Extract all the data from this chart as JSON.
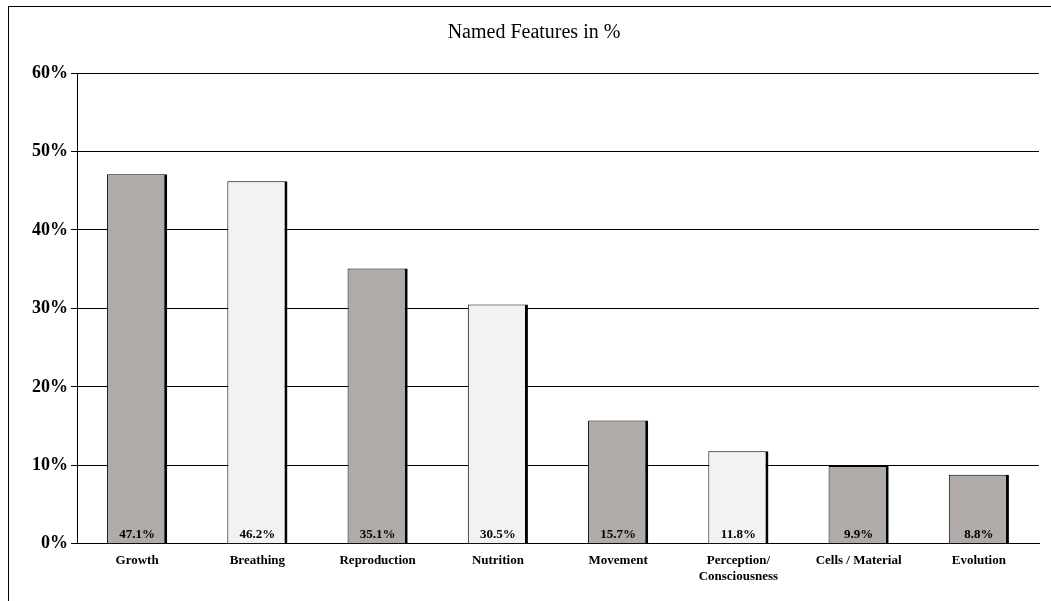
{
  "chart_data": {
    "type": "bar",
    "title": "Named Features in %",
    "categories": [
      "Growth",
      "Breathing",
      "Reproduction",
      "Nutrition",
      "Movement",
      "Perception/\nConsciousness",
      "Cells / Material",
      "Evolution"
    ],
    "values": [
      47.1,
      46.2,
      35.1,
      30.5,
      15.7,
      11.8,
      9.9,
      8.8
    ],
    "colors": [
      "#b0aaa8",
      "#f2f2f2",
      "#b0aaa8",
      "#f2f2f2",
      "#b0aaa8",
      "#f2f2f2",
      "#b0aaa8",
      "#b0aaa8"
    ],
    "value_labels": [
      "47.1%",
      "46.2%",
      "35.1%",
      "30.5%",
      "15.7%",
      "11.8%",
      "9.9%",
      "8.8%"
    ],
    "ylim": [
      0,
      60
    ],
    "yticks": [
      {
        "value": 0,
        "label": "0%"
      },
      {
        "value": 10,
        "label": "10%"
      },
      {
        "value": 20,
        "label": "20%"
      },
      {
        "value": 30,
        "label": "30%"
      },
      {
        "value": 40,
        "label": "40%"
      },
      {
        "value": 50,
        "label": "50%"
      },
      {
        "value": 60,
        "label": "60%"
      }
    ],
    "grid": "y",
    "legend": false
  }
}
